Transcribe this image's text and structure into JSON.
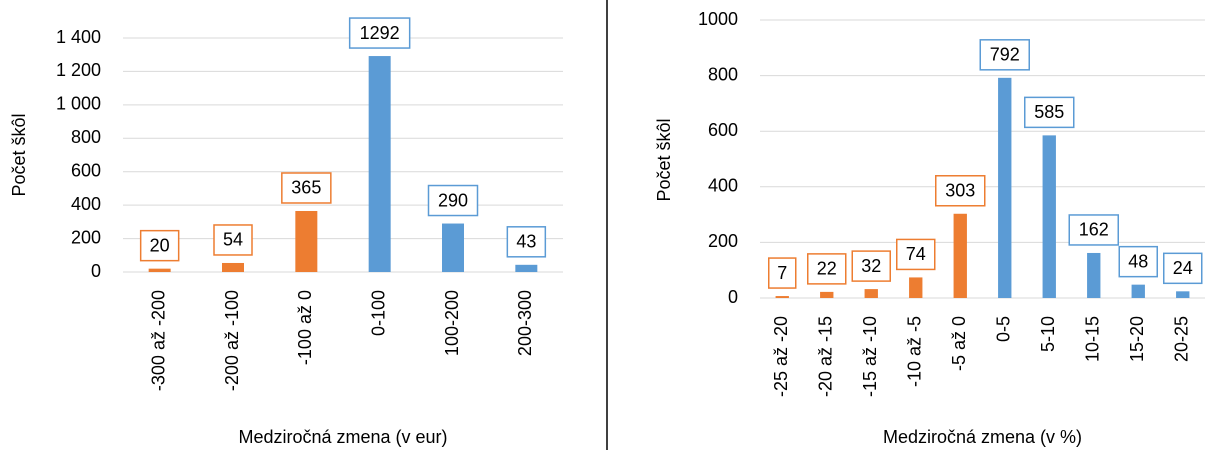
{
  "chart_data": [
    {
      "type": "bar",
      "y_label": "Počet škôl",
      "x_label": "Medziročná zmena (v eur)",
      "categories": [
        "-300 až -200",
        "-200 až -100",
        "-100 až 0",
        "0-100",
        "100-200",
        "200-300"
      ],
      "values": [
        20,
        54,
        365,
        1292,
        290,
        43
      ],
      "colors": [
        "#ed7d31",
        "#ed7d31",
        "#ed7d31",
        "#5b9bd5",
        "#5b9bd5",
        "#5b9bd5"
      ],
      "ylim": [
        0,
        1400
      ],
      "yticks": [
        0,
        200,
        400,
        600,
        800,
        {
          "value": 1000,
          "label": "1 000"
        },
        {
          "value": 1200,
          "label": "1 200"
        },
        {
          "value": 1400,
          "label": "1 400"
        }
      ],
      "grid": true
    },
    {
      "type": "bar",
      "y_label": "Počet škôl",
      "x_label": "Medziročná zmena (v %)",
      "categories": [
        "-25 až -20",
        "-20 až -15",
        "-15 až -10",
        "-10 až -5",
        "-5 až 0",
        "0-5",
        "5-10",
        "10-15",
        "15-20",
        "20-25"
      ],
      "values": [
        7,
        22,
        32,
        74,
        303,
        792,
        585,
        162,
        48,
        24
      ],
      "colors": [
        "#ed7d31",
        "#ed7d31",
        "#ed7d31",
        "#ed7d31",
        "#ed7d31",
        "#5b9bd5",
        "#5b9bd5",
        "#5b9bd5",
        "#5b9bd5",
        "#5b9bd5"
      ],
      "ylim": [
        0,
        1000
      ],
      "yticks": [
        0,
        200,
        400,
        600,
        800,
        1000
      ],
      "grid": true
    }
  ]
}
